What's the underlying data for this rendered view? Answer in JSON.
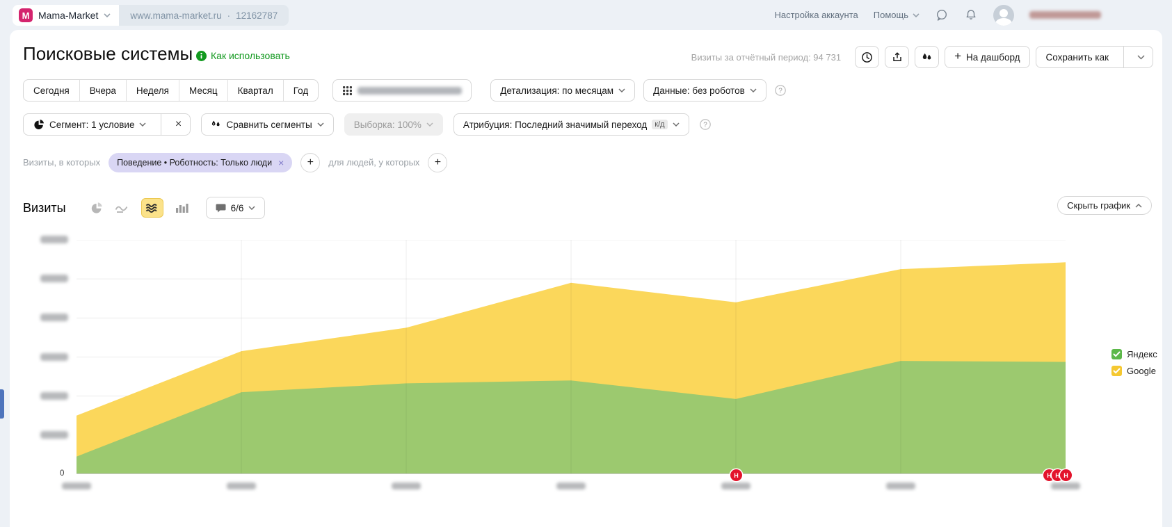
{
  "topbar": {
    "counter_name": "Mama-Market",
    "counter_logo_letter": "M",
    "counter_url": "www.mama-market.ru",
    "separator": "·",
    "counter_id": "12162787",
    "account_settings": "Настройка аккаунта",
    "help": "Помощь",
    "user_email_redacted": true
  },
  "header": {
    "title": "Поисковые системы",
    "how_to_use": "Как использовать",
    "visits_summary": "Визиты за отчётный период: 94 731",
    "dashboard_button": "На дашборд",
    "dashboard_plus": "+",
    "save_as_button": "Сохранить как"
  },
  "periods": [
    "Сегодня",
    "Вчера",
    "Неделя",
    "Месяц",
    "Квартал",
    "Год"
  ],
  "date_range": {
    "redacted": true
  },
  "toolbar": {
    "detailization": "Детализация: по месяцам",
    "data_mode": "Данные: без роботов"
  },
  "segment_bar": {
    "segment": "Сегмент: 1 условие",
    "clear": "×",
    "compare": "Сравнить сегменты",
    "sampling": "Выборка: 100%",
    "attribution": "Атрибуция: Последний значимый переход",
    "attribution_badge": "к/д"
  },
  "filters": {
    "visits_label": "Визиты, в которых",
    "chip": "Поведение • Роботность: Только люди",
    "chip_remove": "×",
    "add": "+",
    "people_label": "для людей, у которых"
  },
  "chart_controls": {
    "metric": "Визиты",
    "annotations_count": "6/6",
    "hide_chart": "Скрыть график"
  },
  "chart_data": {
    "type": "area",
    "stacked": true,
    "title": "Визиты",
    "x_tick_count": 7,
    "x_tick_labels_redacted": true,
    "y_tick_labels_redacted_except_zero": true,
    "y_zero_label": "0",
    "ylim_estimated": [
      0,
      12000
    ],
    "y_grid_step_estimated": 2000,
    "grid": true,
    "series": [
      {
        "name": "Яндекс",
        "color": "#9cc96f",
        "values_estimated": [
          900,
          4200,
          4650,
          4800,
          3850,
          5800,
          5750
        ]
      },
      {
        "name": "Google",
        "color": "#fbd75b",
        "values_estimated": [
          2100,
          2100,
          2850,
          5000,
          4950,
          4700,
          5100
        ]
      }
    ],
    "annotation_markers": [
      {
        "tick_index": 4,
        "count": 1,
        "glyph": "Н"
      },
      {
        "tick_index": 6,
        "count": 3,
        "glyph": "Н"
      }
    ],
    "legend_position": "right"
  },
  "legend": [
    {
      "label": "Яндекс",
      "color": "#5cb849"
    },
    {
      "label": "Google",
      "color": "#f5c831"
    }
  ],
  "colors": {
    "brand_logo": "#d4246e",
    "accent_green": "#12991f",
    "selected_icon_bg": "#fbe28a",
    "chip_bg": "#d9d6f4",
    "annotation_red": "#e3142c",
    "topbar_bg": "#edf1f6",
    "area_green": "#9cc96f",
    "area_yellow": "#fbd75b"
  }
}
